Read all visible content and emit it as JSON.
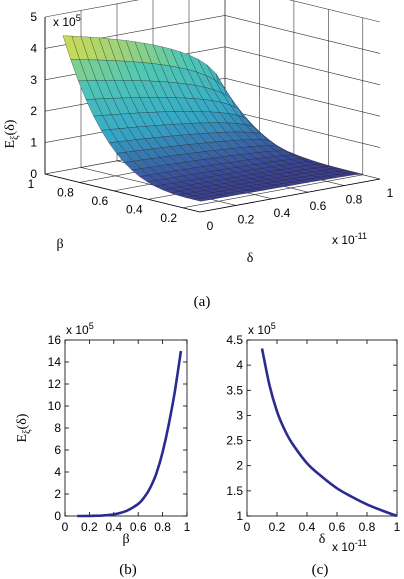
{
  "chart_data": [
    {
      "type": "surface",
      "panel": "(a)",
      "title": "",
      "xlabel": "δ",
      "ylabel": "β",
      "zlabel": "E_ξ(δ)",
      "x_multiplier": "x 10^-11",
      "z_multiplier": "x 10^5",
      "xlim": [
        0,
        1
      ],
      "ylim": [
        0.1,
        1
      ],
      "zlim": [
        0,
        5
      ],
      "x_ticks": [
        "0",
        "0.2",
        "0.4",
        "0.6",
        "0.8",
        "1"
      ],
      "y_ticks": [
        "0.2",
        "0.4",
        "0.6",
        "0.8",
        "1"
      ],
      "z_ticks": [
        "0",
        "1",
        "2",
        "3",
        "4",
        "5"
      ],
      "corner_values": [
        {
          "delta": 0.1,
          "beta": 1,
          "value": 4.3
        },
        {
          "delta": 0.1,
          "beta": 0.2,
          "value": 0.1
        },
        {
          "delta": 1,
          "beta": 1,
          "value": 1.0
        },
        {
          "delta": 1,
          "beta": 0.2,
          "value": 0.02
        }
      ],
      "grid": true
    },
    {
      "type": "line",
      "panel": "(b)",
      "title": "",
      "xlabel": "β",
      "ylabel": "E_ξ(δ)",
      "y_multiplier": "x 10^5",
      "xlim": [
        0,
        1
      ],
      "ylim": [
        0,
        16
      ],
      "x_ticks": [
        "0",
        "0.2",
        "0.4",
        "0.6",
        "0.8",
        "1"
      ],
      "y_ticks": [
        "0",
        "2",
        "4",
        "6",
        "8",
        "10",
        "12",
        "14",
        "16"
      ],
      "x": [
        0.1,
        0.2,
        0.3,
        0.4,
        0.5,
        0.6,
        0.65,
        0.7,
        0.75,
        0.8,
        0.85,
        0.9,
        0.95
      ],
      "y": [
        0.0,
        0.01,
        0.04,
        0.15,
        0.45,
        1.1,
        1.7,
        2.6,
        3.9,
        5.8,
        8.3,
        11.3,
        15.0
      ],
      "grid": false
    },
    {
      "type": "line",
      "panel": "(c)",
      "title": "",
      "xlabel": "δ",
      "x_multiplier": "x 10^-11",
      "y_multiplier": "x 10^5",
      "xlim": [
        0,
        1
      ],
      "ylim": [
        1,
        4.5
      ],
      "x_ticks": [
        "0",
        "0.2",
        "0.4",
        "0.6",
        "0.8",
        "1"
      ],
      "y_ticks": [
        "1",
        "1.5",
        "2",
        "2.5",
        "3",
        "3.5",
        "4",
        "4.5"
      ],
      "x": [
        0.1,
        0.15,
        0.2,
        0.25,
        0.3,
        0.4,
        0.5,
        0.6,
        0.7,
        0.8,
        0.9,
        1.0
      ],
      "y": [
        4.33,
        3.6,
        3.08,
        2.72,
        2.45,
        2.05,
        1.78,
        1.55,
        1.38,
        1.23,
        1.11,
        1.0
      ],
      "grid": false
    }
  ],
  "captions": {
    "a": "(a)",
    "b": "(b)",
    "c": "(c)"
  },
  "style": {
    "surface_low": "#3b3a8f",
    "surface_mid": "#35a8c8",
    "surface_high": "#f0e03a",
    "line_color": "#2b2b8f"
  }
}
